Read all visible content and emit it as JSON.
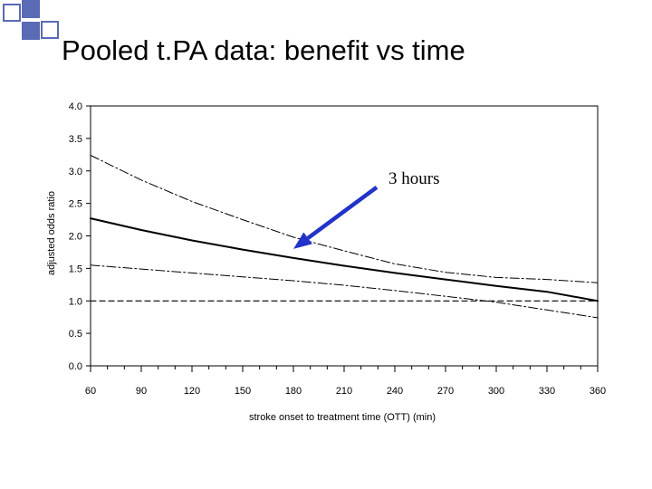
{
  "slide": {
    "title": "Pooled t.PA data: benefit vs time"
  },
  "colors": {
    "deco_squares": "#5a6ab4",
    "arrow": "#2233c8",
    "lines": "#000000"
  },
  "chart_data": {
    "type": "line",
    "title": "Pooled t.PA data: benefit vs time",
    "xlabel": "stroke onset to treatment time (OTT) (min)",
    "ylabel": "adjusted odds ratio",
    "xlim": [
      60,
      360
    ],
    "ylim": [
      0.0,
      4.0
    ],
    "xticks": [
      60,
      90,
      120,
      150,
      180,
      210,
      240,
      270,
      300,
      330,
      360
    ],
    "xtick_labels": [
      "60",
      "90",
      "120",
      "150",
      "180",
      "210",
      "240",
      "270",
      "300",
      "330",
      "360"
    ],
    "yticks": [
      0.0,
      0.5,
      1.0,
      1.5,
      2.0,
      2.5,
      3.0,
      3.5,
      4.0
    ],
    "ytick_labels": [
      "0.0",
      "0.5",
      "1.0",
      "1.5",
      "2.0",
      "2.5",
      "3.0",
      "3.5",
      "4.0"
    ],
    "grid": false,
    "series": [
      {
        "style": "solid",
        "x": [
          60,
          90,
          120,
          150,
          180,
          210,
          240,
          270,
          300,
          330,
          360
        ],
        "y": [
          2.27,
          2.09,
          1.93,
          1.79,
          1.66,
          1.54,
          1.43,
          1.33,
          1.23,
          1.14,
          1.0
        ]
      },
      {
        "style": "dash-dot",
        "x": [
          60,
          90,
          120,
          150,
          180,
          210,
          240,
          270,
          300,
          330,
          360
        ],
        "y": [
          3.24,
          2.86,
          2.53,
          2.25,
          1.98,
          1.77,
          1.57,
          1.44,
          1.36,
          1.33,
          1.28
        ]
      },
      {
        "style": "dash-dot",
        "x": [
          60,
          90,
          120,
          150,
          180,
          210,
          240,
          270,
          300,
          330,
          360
        ],
        "y": [
          1.55,
          1.49,
          1.43,
          1.37,
          1.31,
          1.24,
          1.16,
          1.07,
          0.98,
          0.86,
          0.74
        ]
      },
      {
        "style": "dashed",
        "x": [
          60,
          360
        ],
        "y": [
          1.0,
          1.0
        ]
      }
    ],
    "annotation": {
      "text": "3 hours",
      "points_to": {
        "x": 180,
        "y": 1.8
      }
    }
  }
}
